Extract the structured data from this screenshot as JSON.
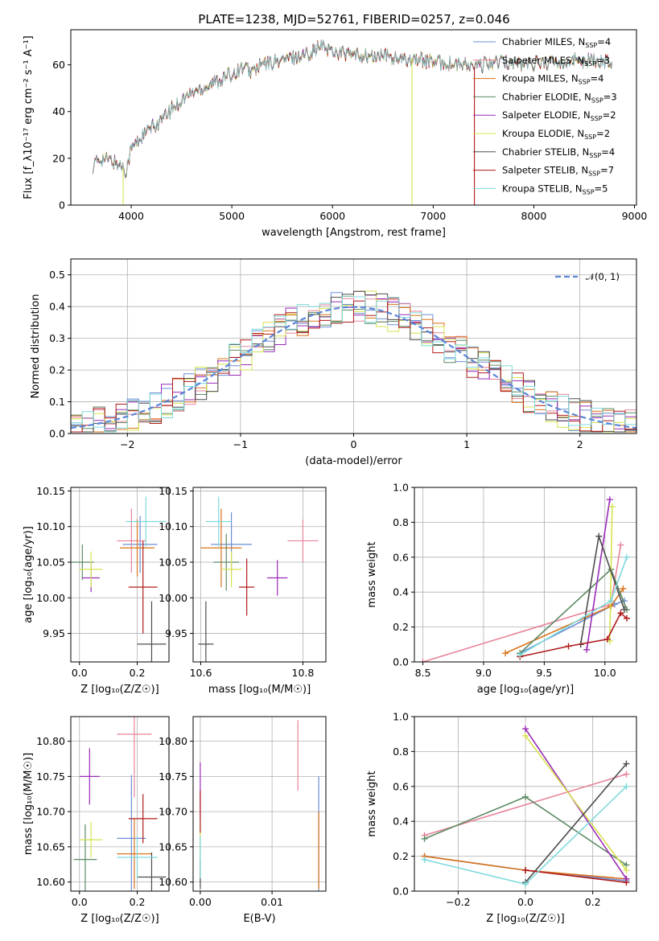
{
  "figure_title": "PLATE=1238, MJD=52761, FIBERID=0257, z=0.046",
  "colors": {
    "Chabrier MILES": "#6b8fd6",
    "Salpeter MILES": "#e8839a",
    "Kroupa MILES": "#d9731a",
    "Chabrier ELODIE": "#5e8a64",
    "Salpeter ELODIE": "#9a2bb8",
    "Kroupa ELODIE": "#d6e34f",
    "Chabrier STELIB": "#4d4d4d",
    "Salpeter STELIB": "#b01b1b",
    "Kroupa STELIB": "#7fd9dc",
    "normal": "#5a86d8"
  },
  "chart_data": [
    {
      "id": "spectrum",
      "type": "line",
      "xlabel": "wavelength [Angstrom, rest frame]",
      "ylabel": "Flux [f_λ10⁻¹⁷ erg cm⁻² s⁻¹ A⁻¹]",
      "xlim": [
        3400,
        9020
      ],
      "ylim": [
        0,
        75
      ],
      "xticks": [
        4000,
        5000,
        6000,
        7000,
        8000,
        9000
      ],
      "yticks": [
        0,
        20,
        40,
        60
      ],
      "legend_position": "top-right",
      "legend": [
        {
          "series": "Chabrier MILES",
          "label": "Chabrier MILES, N",
          "sub": "SSP",
          "value": "=4"
        },
        {
          "series": "Salpeter MILES",
          "label": "Salpeter MILES, N",
          "sub": "SSP",
          "value": "=3"
        },
        {
          "series": "Kroupa MILES",
          "label": "Kroupa MILES, N",
          "sub": "SSP",
          "value": "=4"
        },
        {
          "series": "Chabrier ELODIE",
          "label": "Chabrier ELODIE, N",
          "sub": "SSP",
          "value": "=3"
        },
        {
          "series": "Salpeter ELODIE",
          "label": "Salpeter ELODIE, N",
          "sub": "SSP",
          "value": "=2"
        },
        {
          "series": "Kroupa ELODIE",
          "label": "Kroupa ELODIE, N",
          "sub": "SSP",
          "value": "=2"
        },
        {
          "series": "Chabrier STELIB",
          "label": "Chabrier STELIB, N",
          "sub": "SSP",
          "value": "=4"
        },
        {
          "series": "Salpeter STELIB",
          "label": "Salpeter STELIB, N",
          "sub": "SSP",
          "value": "=7"
        },
        {
          "series": "Kroupa STELIB",
          "label": "Kroupa STELIB, N",
          "sub": "SSP",
          "value": "=5"
        }
      ],
      "continuum": {
        "wavelength": [
          3620,
          3700,
          3800,
          3900,
          3950,
          4000,
          4100,
          4200,
          4300,
          4400,
          4500,
          4600,
          4700,
          4800,
          4900,
          5000,
          5100,
          5200,
          5300,
          5400,
          5500,
          5600,
          5700,
          5800,
          5900,
          6000,
          6100,
          6200,
          6300,
          6400,
          6500,
          6600,
          6700,
          6800,
          6900,
          7000,
          7100,
          7200,
          7300,
          7400,
          7500,
          7600,
          7700,
          7800,
          7900,
          8000,
          8200,
          8400,
          8600,
          8780
        ],
        "flux": [
          17,
          20,
          19,
          17,
          15,
          24,
          29,
          33,
          36,
          41,
          45,
          48,
          50,
          52,
          54,
          56,
          59,
          57,
          60,
          61,
          62,
          63,
          64,
          66,
          68,
          66,
          65,
          64,
          64,
          63,
          64,
          63,
          62,
          63,
          62,
          61,
          61,
          60,
          60,
          59,
          60,
          61,
          61,
          61,
          60,
          61,
          61,
          62,
          62,
          61
        ]
      },
      "dips": [
        {
          "series": "Kroupa ELODIE",
          "x": 3920
        },
        {
          "series": "Kroupa ELODIE",
          "x": 6790
        },
        {
          "series": "Salpeter STELIB",
          "x": 7410
        }
      ]
    },
    {
      "id": "residuals",
      "type": "histogram",
      "xlabel": "(data-model)/error",
      "ylabel": "Normed distribution",
      "xlim": [
        -2.5,
        2.5
      ],
      "ylim": [
        0,
        0.55
      ],
      "xticks": [
        -2,
        -1,
        0,
        1,
        2
      ],
      "yticks": [
        0.0,
        0.1,
        0.2,
        0.3,
        0.4,
        0.5
      ],
      "bin_width": 0.1,
      "reference_curve": {
        "name": "𝒩(0, 1)",
        "mean": 0,
        "sigma": 1
      },
      "legend_position": "top-right"
    },
    {
      "id": "age_vs_Z",
      "type": "errorbar",
      "xlabel": "Z [log₁₀(Z/Z☉)]",
      "ylabel": "age  [log₁₀(age/yr)]",
      "xlim": [
        -0.03,
        0.31
      ],
      "ylim": [
        9.91,
        10.155
      ],
      "xticks": [
        0.0,
        0.2
      ],
      "yticks": [
        9.95,
        10.0,
        10.05,
        10.1,
        10.15
      ],
      "points": [
        {
          "series": "Chabrier MILES",
          "x": 0.21,
          "y": 10.075,
          "xerr": 0.06,
          "yerr": 0.04
        },
        {
          "series": "Salpeter MILES",
          "x": 0.18,
          "y": 10.08,
          "xerr": 0.05,
          "yerr": 0.045
        },
        {
          "series": "Kroupa MILES",
          "x": 0.2,
          "y": 10.07,
          "xerr": 0.06,
          "yerr": 0.04
        },
        {
          "series": "Chabrier ELODIE",
          "x": 0.01,
          "y": 10.05,
          "xerr": 0.04,
          "yerr": 0.025
        },
        {
          "series": "Salpeter ELODIE",
          "x": 0.04,
          "y": 10.028,
          "xerr": 0.03,
          "yerr": 0.02
        },
        {
          "series": "Kroupa ELODIE",
          "x": 0.04,
          "y": 10.04,
          "xerr": 0.04,
          "yerr": 0.025
        },
        {
          "series": "Chabrier STELIB",
          "x": 0.25,
          "y": 9.935,
          "xerr": 0.05,
          "yerr": 0.06
        },
        {
          "series": "Salpeter STELIB",
          "x": 0.22,
          "y": 10.015,
          "xerr": 0.05,
          "yerr": 0.065
        },
        {
          "series": "Kroupa STELIB",
          "x": 0.23,
          "y": 10.107,
          "xerr": 0.07,
          "yerr": 0.035
        }
      ]
    },
    {
      "id": "age_vs_mass",
      "type": "errorbar",
      "xlabel": "mass [log₁₀(M/M☉)]",
      "ylabel": "",
      "xlim": [
        10.585,
        10.845
      ],
      "ylim": [
        9.91,
        10.155
      ],
      "xticks": [
        10.6,
        10.8
      ],
      "yticks": [
        9.95,
        10.0,
        10.05,
        10.1,
        10.15
      ],
      "points": [
        {
          "series": "Chabrier MILES",
          "x": 10.66,
          "y": 10.075,
          "xerr": 0.04,
          "yerr": 0.045
        },
        {
          "series": "Salpeter MILES",
          "x": 10.8,
          "y": 10.08,
          "xerr": 0.03,
          "yerr": 0.03
        },
        {
          "series": "Kroupa MILES",
          "x": 10.64,
          "y": 10.07,
          "xerr": 0.04,
          "yerr": 0.055
        },
        {
          "series": "Chabrier ELODIE",
          "x": 10.65,
          "y": 10.05,
          "xerr": 0.025,
          "yerr": 0.04
        },
        {
          "series": "Salpeter ELODIE",
          "x": 10.75,
          "y": 10.028,
          "xerr": 0.02,
          "yerr": 0.025
        },
        {
          "series": "Kroupa ELODIE",
          "x": 10.66,
          "y": 10.04,
          "xerr": 0.02,
          "yerr": 0.025
        },
        {
          "series": "Chabrier STELIB",
          "x": 10.61,
          "y": 9.935,
          "xerr": 0.015,
          "yerr": 0.06
        },
        {
          "series": "Salpeter STELIB",
          "x": 10.69,
          "y": 10.015,
          "xerr": 0.015,
          "yerr": 0.04
        },
        {
          "series": "Kroupa STELIB",
          "x": 10.635,
          "y": 10.107,
          "xerr": 0.025,
          "yerr": 0.035
        }
      ]
    },
    {
      "id": "weight_vs_age",
      "type": "line",
      "xlabel": "age  [log₁₀(age/yr)]",
      "ylabel": "mass weight",
      "xlim": [
        8.43,
        10.26
      ],
      "ylim": [
        0,
        1.0
      ],
      "xticks": [
        8.5,
        9.0,
        9.5,
        10.0
      ],
      "yticks": [
        0.0,
        0.2,
        0.4,
        0.6,
        0.8,
        1.0
      ],
      "series": [
        {
          "name": "Salpeter MILES",
          "x": [
            8.5,
            10.05,
            10.13
          ],
          "y": [
            0.0,
            0.33,
            0.67
          ]
        },
        {
          "name": "Chabrier MILES",
          "x": [
            9.3,
            10.08,
            10.16
          ],
          "y": [
            0.05,
            0.33,
            0.35
          ]
        },
        {
          "name": "Kroupa MILES",
          "x": [
            9.18,
            10.05,
            10.15
          ],
          "y": [
            0.05,
            0.32,
            0.42
          ]
        },
        {
          "name": "Chabrier ELODIE",
          "x": [
            9.3,
            10.05,
            10.18
          ],
          "y": [
            0.05,
            0.53,
            0.3
          ]
        },
        {
          "name": "Salpeter ELODIE",
          "x": [
            9.85,
            10.04
          ],
          "y": [
            0.07,
            0.93
          ]
        },
        {
          "name": "Kroupa ELODIE",
          "x": [
            10.04,
            10.06
          ],
          "y": [
            0.12,
            0.89
          ]
        },
        {
          "name": "Chabrier STELIB",
          "x": [
            9.8,
            9.95,
            10.16
          ],
          "y": [
            0.1,
            0.72,
            0.3
          ]
        },
        {
          "name": "Salpeter STELIB",
          "x": [
            9.3,
            9.7,
            10.02,
            10.13,
            10.18
          ],
          "y": [
            0.03,
            0.09,
            0.13,
            0.28,
            0.25
          ]
        },
        {
          "name": "Kroupa STELIB",
          "x": [
            9.3,
            10.05,
            10.18
          ],
          "y": [
            0.04,
            0.35,
            0.6
          ]
        }
      ]
    },
    {
      "id": "mass_vs_Z",
      "type": "errorbar",
      "xlabel": "Z [log₁₀(Z/Z☉)]",
      "ylabel": "mass [log₁₀(M/M☉)]",
      "xlim": [
        -0.03,
        0.31
      ],
      "ylim": [
        10.587,
        10.835
      ],
      "xticks": [
        0.0,
        0.2
      ],
      "yticks": [
        10.6,
        10.65,
        10.7,
        10.75,
        10.8
      ],
      "points": [
        {
          "series": "Chabrier MILES",
          "x": 0.18,
          "y": 10.662,
          "xerr": 0.05,
          "yerr": 0.09
        },
        {
          "series": "Salpeter MILES",
          "x": 0.19,
          "y": 10.81,
          "xerr": 0.06,
          "yerr": 0.09
        },
        {
          "series": "Kroupa MILES",
          "x": 0.19,
          "y": 10.64,
          "xerr": 0.06,
          "yerr": 0.05
        },
        {
          "series": "Chabrier ELODIE",
          "x": 0.02,
          "y": 10.632,
          "xerr": 0.04,
          "yerr": 0.05
        },
        {
          "series": "Salpeter ELODIE",
          "x": 0.035,
          "y": 10.75,
          "xerr": 0.035,
          "yerr": 0.04
        },
        {
          "series": "Kroupa ELODIE",
          "x": 0.04,
          "y": 10.66,
          "xerr": 0.04,
          "yerr": 0.025
        },
        {
          "series": "Chabrier STELIB",
          "x": 0.25,
          "y": 10.607,
          "xerr": 0.05,
          "yerr": 0.035
        },
        {
          "series": "Salpeter STELIB",
          "x": 0.22,
          "y": 10.69,
          "xerr": 0.05,
          "yerr": 0.035
        },
        {
          "series": "Kroupa STELIB",
          "x": 0.2,
          "y": 10.635,
          "xerr": 0.07,
          "yerr": 0.03
        }
      ]
    },
    {
      "id": "mass_vs_ebv",
      "type": "errorbar",
      "xlabel": "E(B-V)",
      "ylabel": "",
      "xlim": [
        -0.001,
        0.0175
      ],
      "ylim": [
        10.587,
        10.835
      ],
      "xticks": [
        0.0,
        0.01
      ],
      "yticks": [
        10.6,
        10.65,
        10.7,
        10.75,
        10.8
      ],
      "points": [
        {
          "series": "Chabrier MILES",
          "x": 0.0165,
          "y": 10.66,
          "xerr": 0,
          "yerr": 0.09
        },
        {
          "series": "Salpeter MILES",
          "x": 0.0136,
          "y": 10.78,
          "xerr": 0,
          "yerr": 0.05
        },
        {
          "series": "Kroupa MILES",
          "x": 0.0165,
          "y": 10.645,
          "xerr": 0,
          "yerr": 0.055
        },
        {
          "series": "Chabrier ELODIE",
          "x": 0.0,
          "y": 10.635,
          "xerr": 0,
          "yerr": 0.035
        },
        {
          "series": "Salpeter ELODIE",
          "x": 0.0,
          "y": 10.73,
          "xerr": 0,
          "yerr": 0.04
        },
        {
          "series": "Kroupa ELODIE",
          "x": 0.0,
          "y": 10.66,
          "xerr": 0,
          "yerr": 0.025
        },
        {
          "series": "Chabrier STELIB",
          "x": 0.0,
          "y": 10.61,
          "xerr": 0,
          "yerr": 0.02
        },
        {
          "series": "Salpeter STELIB",
          "x": 0.0,
          "y": 10.7,
          "xerr": 0,
          "yerr": 0.03
        },
        {
          "series": "Kroupa STELIB",
          "x": 0.0,
          "y": 10.635,
          "xerr": 0,
          "yerr": 0.03
        }
      ]
    },
    {
      "id": "weight_vs_Z",
      "type": "line",
      "xlabel": "Z [log₁₀(Z/Z☉)]",
      "ylabel": "mass weight",
      "xlim": [
        -0.33,
        0.33
      ],
      "ylim": [
        0,
        1.0
      ],
      "xticks": [
        -0.2,
        0.0,
        0.2
      ],
      "yticks": [
        0.0,
        0.2,
        0.4,
        0.6,
        0.8,
        1.0
      ],
      "series": [
        {
          "name": "Salpeter MILES",
          "x": [
            -0.3,
            0.3
          ],
          "y": [
            0.32,
            0.67
          ]
        },
        {
          "name": "Chabrier MILES",
          "x": [
            -0.3,
            0.0,
            0.3
          ],
          "y": [
            0.2,
            0.12,
            0.06
          ]
        },
        {
          "name": "Kroupa MILES",
          "x": [
            -0.3,
            0.0,
            0.3
          ],
          "y": [
            0.2,
            0.12,
            0.07
          ]
        },
        {
          "name": "Chabrier ELODIE",
          "x": [
            -0.3,
            0.0,
            0.3
          ],
          "y": [
            0.3,
            0.54,
            0.15
          ]
        },
        {
          "name": "Salpeter ELODIE",
          "x": [
            0.0,
            0.3
          ],
          "y": [
            0.93,
            0.07
          ]
        },
        {
          "name": "Kroupa ELODIE",
          "x": [
            0.0,
            0.3
          ],
          "y": [
            0.89,
            0.12
          ]
        },
        {
          "name": "Chabrier STELIB",
          "x": [
            0.0,
            0.3
          ],
          "y": [
            0.05,
            0.73
          ]
        },
        {
          "name": "Salpeter STELIB",
          "x": [
            0.0,
            0.3
          ],
          "y": [
            0.12,
            0.05
          ]
        },
        {
          "name": "Kroupa STELIB",
          "x": [
            -0.3,
            0.0,
            0.3
          ],
          "y": [
            0.18,
            0.04,
            0.6
          ]
        }
      ]
    }
  ]
}
